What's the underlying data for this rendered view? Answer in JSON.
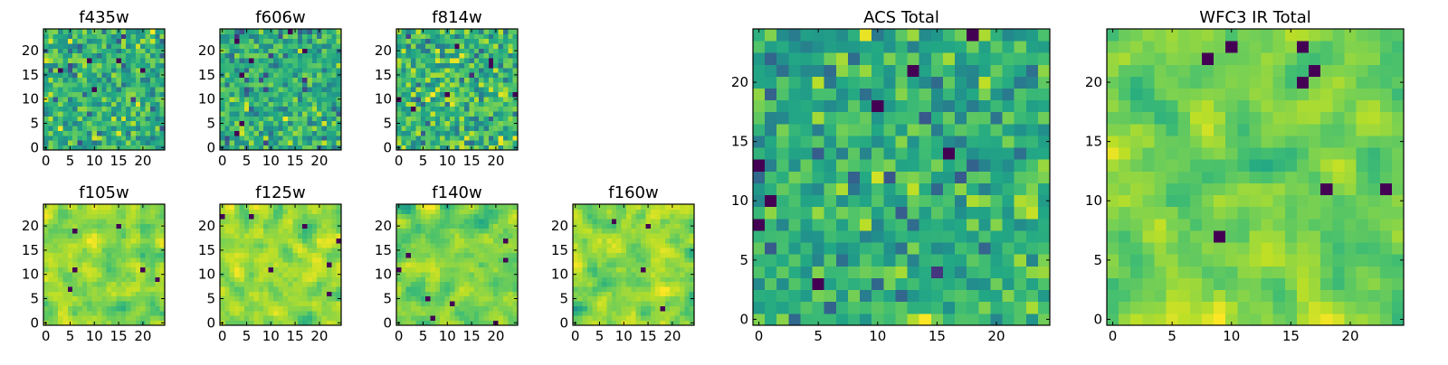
{
  "chart_data": {
    "type": "heatmap",
    "colormap": "viridis",
    "grid": false,
    "legend": "none",
    "panels": [
      {
        "title": "f435w",
        "grid_size": 25,
        "xlim": [
          0,
          24
        ],
        "ylim": [
          0,
          24
        ],
        "xticks": [
          "0",
          "5",
          "10",
          "15",
          "20"
        ],
        "yticks": [
          "0",
          "5",
          "10",
          "15",
          "20"
        ],
        "seed": 11,
        "scale": 1.0
      },
      {
        "title": "f606w",
        "grid_size": 25,
        "xlim": [
          0,
          24
        ],
        "ylim": [
          0,
          24
        ],
        "xticks": [
          "0",
          "5",
          "10",
          "15",
          "20"
        ],
        "yticks": [
          "0",
          "5",
          "10",
          "15",
          "20"
        ],
        "seed": 23,
        "scale": 1.0
      },
      {
        "title": "f814w",
        "grid_size": 25,
        "xlim": [
          0,
          24
        ],
        "ylim": [
          0,
          24
        ],
        "xticks": [
          "0",
          "5",
          "10",
          "15",
          "20"
        ],
        "yticks": [
          "0",
          "5",
          "10",
          "15",
          "20"
        ],
        "seed": 37,
        "scale": 1.0
      },
      {
        "title": "f105w",
        "grid_size": 25,
        "xlim": [
          0,
          24
        ],
        "ylim": [
          0,
          24
        ],
        "xticks": [
          "0",
          "5",
          "10",
          "15",
          "20"
        ],
        "yticks": [
          "0",
          "5",
          "10",
          "15",
          "20"
        ],
        "seed": 41,
        "scale": 2.0
      },
      {
        "title": "f125w",
        "grid_size": 25,
        "xlim": [
          0,
          24
        ],
        "ylim": [
          0,
          24
        ],
        "xticks": [
          "0",
          "5",
          "10",
          "15",
          "20"
        ],
        "yticks": [
          "0",
          "5",
          "10",
          "15",
          "20"
        ],
        "seed": 53,
        "scale": 2.0
      },
      {
        "title": "f140w",
        "grid_size": 25,
        "xlim": [
          0,
          24
        ],
        "ylim": [
          0,
          24
        ],
        "xticks": [
          "0",
          "5",
          "10",
          "15",
          "20"
        ],
        "yticks": [
          "0",
          "5",
          "10",
          "15",
          "20"
        ],
        "seed": 67,
        "scale": 2.0
      },
      {
        "title": "f160w",
        "grid_size": 25,
        "xlim": [
          0,
          24
        ],
        "ylim": [
          0,
          24
        ],
        "xticks": [
          "0",
          "5",
          "10",
          "15",
          "20"
        ],
        "yticks": [
          "0",
          "5",
          "10",
          "15",
          "20"
        ],
        "seed": 79,
        "scale": 2.0
      },
      {
        "title": "ACS Total",
        "grid_size": 25,
        "xlim": [
          0,
          24
        ],
        "ylim": [
          0,
          24
        ],
        "xticks": [
          "0",
          "5",
          "10",
          "15",
          "20"
        ],
        "yticks": [
          "0",
          "5",
          "10",
          "15",
          "20"
        ],
        "seed": 97,
        "scale": 1.0
      },
      {
        "title": "WFC3 IR Total",
        "grid_size": 25,
        "xlim": [
          0,
          24
        ],
        "ylim": [
          0,
          24
        ],
        "xticks": [
          "0",
          "5",
          "10",
          "15",
          "20"
        ],
        "yticks": [
          "0",
          "5",
          "10",
          "15",
          "20"
        ],
        "seed": 113,
        "scale": 2.0
      }
    ]
  }
}
